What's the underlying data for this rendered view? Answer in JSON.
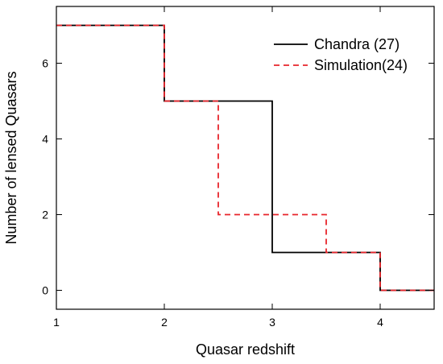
{
  "chart_data": {
    "type": "line",
    "style": "step",
    "xlabel": "Quasar redshift",
    "ylabel": "Number of lensed Quasars",
    "xlim": [
      1,
      4.5
    ],
    "ylim": [
      -0.5,
      7.5
    ],
    "xticks": [
      1,
      2,
      3,
      4
    ],
    "yticks": [
      0,
      2,
      4,
      6
    ],
    "grid": false,
    "legend_position": "top-right",
    "series": [
      {
        "name": "Chandra (27)",
        "color": "#000000",
        "dash": "solid",
        "x": [
          1,
          2,
          3,
          4,
          4.5
        ],
        "y": [
          7,
          5,
          1,
          0,
          0
        ]
      },
      {
        "name": "Simulation(24)",
        "color": "#e8252b",
        "dash": "dashed",
        "x": [
          1,
          2,
          2.5,
          3.5,
          4,
          4.5
        ],
        "y": [
          7,
          5,
          2,
          1,
          0,
          0
        ]
      }
    ]
  }
}
